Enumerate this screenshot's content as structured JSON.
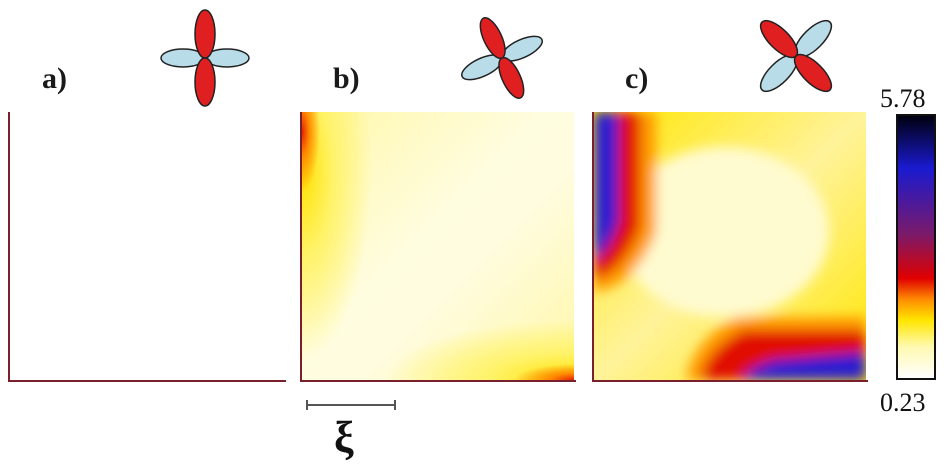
{
  "panels": [
    {
      "label": "a)"
    },
    {
      "label": "b)"
    },
    {
      "label": "c)"
    }
  ],
  "colorbar": {
    "max_label": "5.78",
    "min_label": "0.23",
    "stops": [
      "#ffffff",
      "#fff9b0",
      "#ffe600",
      "#ff8c00",
      "#e00000",
      "#7a1a6a",
      "#1a1ad0",
      "#000010"
    ]
  },
  "scale": {
    "symbol": "ξ"
  },
  "colors": {
    "axis": "#7a1f2c",
    "orbital_red": "#e02020",
    "orbital_blue": "#b8dce8"
  }
}
